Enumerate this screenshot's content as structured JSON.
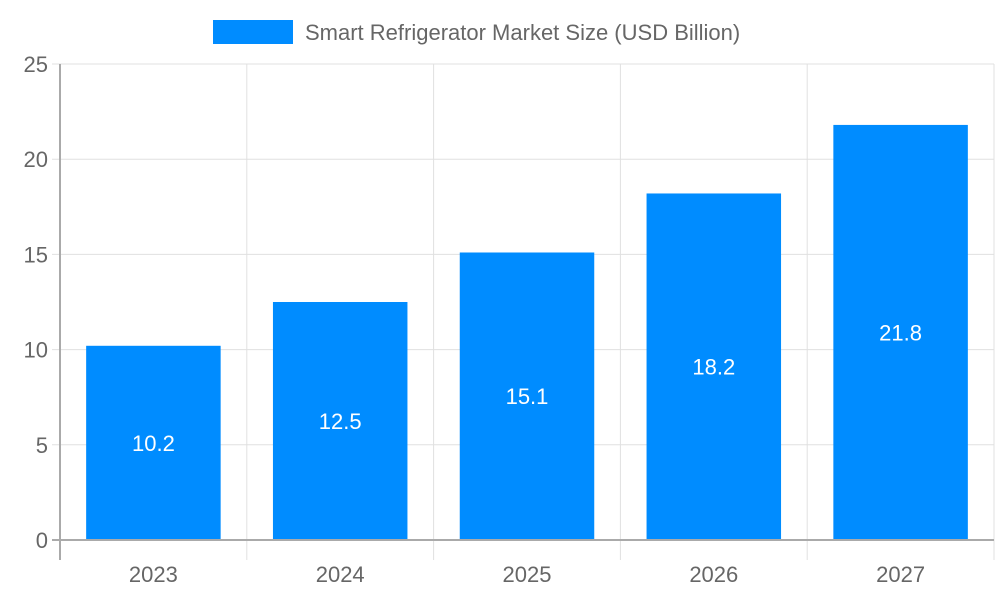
{
  "chart_data": {
    "type": "bar",
    "title": "",
    "xlabel": "",
    "ylabel": "",
    "categories": [
      "2023",
      "2024",
      "2025",
      "2026",
      "2027"
    ],
    "series": [
      {
        "name": "Smart Refrigerator Market Size (USD Billion)",
        "values": [
          10.2,
          12.5,
          15.1,
          18.2,
          21.8
        ],
        "color": "#008cff"
      }
    ],
    "ylim": [
      0,
      25
    ],
    "yticks": [
      "0",
      "5",
      "10",
      "15",
      "20",
      "25"
    ],
    "grid": true,
    "legend": "top-center",
    "data_labels": [
      "10.2",
      "12.5",
      "15.1",
      "18.2",
      "21.8"
    ],
    "data_label_color": "#ffffff",
    "text_color": "#666666",
    "grid_color": "#e0e0e0"
  }
}
